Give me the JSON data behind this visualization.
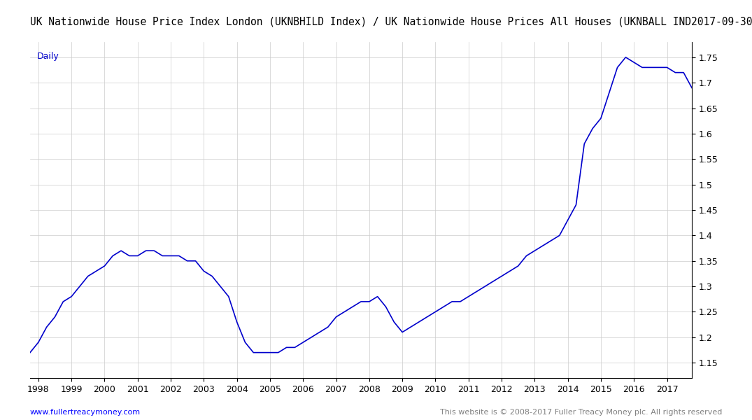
{
  "title": "UK Nationwide House Price Index London (UKNBHILD Index) / UK Nationwide House Prices All Houses (UKNBALL IND",
  "date_label": "2017-09-30",
  "subtitle": "Daily",
  "line_color": "#0000CC",
  "background_color": "#FFFFFF",
  "grid_color": "#CCCCCC",
  "ylabel_right": "",
  "x_start_year": 1997.75,
  "x_end_year": 2017.75,
  "yticks": [
    1.15,
    1.2,
    1.25,
    1.3,
    1.35,
    1.4,
    1.45,
    1.5,
    1.55,
    1.6,
    1.65,
    1.7,
    1.75
  ],
  "xtick_years": [
    1998,
    1999,
    2000,
    2001,
    2002,
    2003,
    2004,
    2005,
    2006,
    2007,
    2008,
    2009,
    2010,
    2011,
    2012,
    2013,
    2014,
    2015,
    2016,
    2017
  ],
  "footer_left": "www.fullertreacymoney.com",
  "footer_right": "This website is © 2008-2017 Fuller Treacy Money plc. All rights reserved",
  "data_x": [
    1997.75,
    1998.0,
    1998.25,
    1998.5,
    1998.75,
    1999.0,
    1999.25,
    1999.5,
    1999.75,
    2000.0,
    2000.25,
    2000.5,
    2000.75,
    2001.0,
    2001.25,
    2001.5,
    2001.75,
    2002.0,
    2002.25,
    2002.5,
    2002.75,
    2003.0,
    2003.25,
    2003.5,
    2003.75,
    2004.0,
    2004.25,
    2004.5,
    2004.75,
    2005.0,
    2005.25,
    2005.5,
    2005.75,
    2006.0,
    2006.25,
    2006.5,
    2006.75,
    2007.0,
    2007.25,
    2007.5,
    2007.75,
    2008.0,
    2008.25,
    2008.5,
    2008.75,
    2009.0,
    2009.25,
    2009.5,
    2009.75,
    2010.0,
    2010.25,
    2010.5,
    2010.75,
    2011.0,
    2011.25,
    2011.5,
    2011.75,
    2012.0,
    2012.25,
    2012.5,
    2012.75,
    2013.0,
    2013.25,
    2013.5,
    2013.75,
    2014.0,
    2014.25,
    2014.5,
    2014.75,
    2015.0,
    2015.25,
    2015.5,
    2015.75,
    2016.0,
    2016.25,
    2016.5,
    2016.75,
    2017.0,
    2017.25,
    2017.5,
    2017.75
  ],
  "data_y": [
    1.17,
    1.19,
    1.22,
    1.24,
    1.27,
    1.28,
    1.3,
    1.32,
    1.33,
    1.34,
    1.36,
    1.37,
    1.36,
    1.36,
    1.37,
    1.37,
    1.36,
    1.36,
    1.36,
    1.35,
    1.35,
    1.33,
    1.32,
    1.3,
    1.28,
    1.23,
    1.19,
    1.17,
    1.17,
    1.17,
    1.17,
    1.18,
    1.18,
    1.19,
    1.2,
    1.21,
    1.22,
    1.24,
    1.25,
    1.26,
    1.27,
    1.27,
    1.28,
    1.26,
    1.23,
    1.21,
    1.22,
    1.23,
    1.24,
    1.25,
    1.26,
    1.27,
    1.27,
    1.28,
    1.29,
    1.3,
    1.31,
    1.32,
    1.33,
    1.34,
    1.36,
    1.37,
    1.38,
    1.39,
    1.4,
    1.43,
    1.46,
    1.58,
    1.61,
    1.63,
    1.68,
    1.73,
    1.75,
    1.74,
    1.73,
    1.73,
    1.73,
    1.73,
    1.72,
    1.72,
    1.69
  ]
}
